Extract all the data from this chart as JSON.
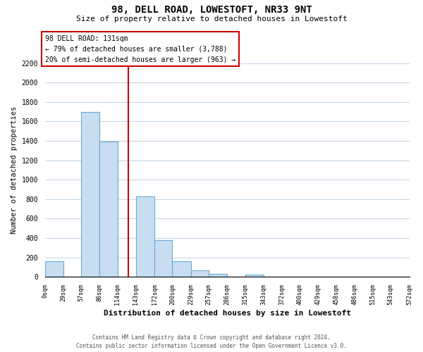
{
  "title": "98, DELL ROAD, LOWESTOFT, NR33 9NT",
  "subtitle": "Size of property relative to detached houses in Lowestoft",
  "xlabel": "Distribution of detached houses by size in Lowestoft",
  "ylabel": "Number of detached properties",
  "bar_color": "#c8ddf0",
  "bar_edge_color": "#6aaad4",
  "background_color": "#ffffff",
  "grid_color": "#c8d8e8",
  "property_line_x": 131,
  "property_line_color": "#cc0000",
  "annotation_title": "98 DELL ROAD: 131sqm",
  "annotation_line1": "← 79% of detached houses are smaller (3,788)",
  "annotation_line2": "20% of semi-detached houses are larger (963) →",
  "bin_edges": [
    0,
    29,
    57,
    86,
    114,
    143,
    172,
    200,
    229,
    257,
    286,
    315,
    343,
    372,
    400,
    429,
    458,
    486,
    515,
    543,
    572
  ],
  "bar_heights": [
    160,
    0,
    1700,
    1390,
    0,
    830,
    380,
    160,
    65,
    30,
    0,
    25,
    0,
    0,
    0,
    0,
    0,
    0,
    0,
    0
  ],
  "ylim": [
    0,
    2200
  ],
  "yticks": [
    0,
    200,
    400,
    600,
    800,
    1000,
    1200,
    1400,
    1600,
    1800,
    2000,
    2200
  ],
  "footer_line1": "Contains HM Land Registry data © Crown copyright and database right 2024.",
  "footer_line2": "Contains public sector information licensed under the Open Government Licence v3.0."
}
